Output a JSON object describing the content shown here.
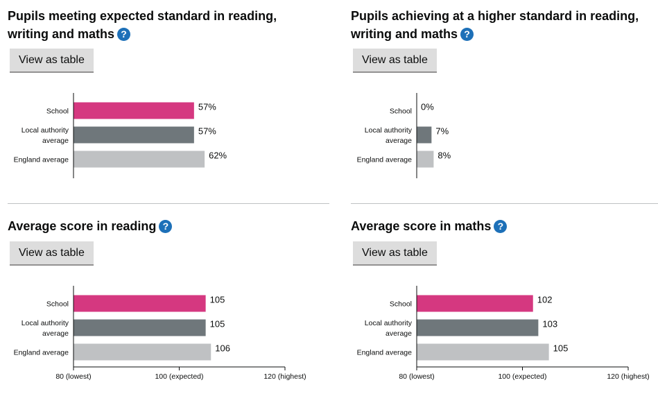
{
  "help_glyph": "?",
  "panels": [
    {
      "title": "Pupils meeting expected standard in reading, writing and maths",
      "button": "View as table"
    },
    {
      "title": "Pupils achieving at a higher standard in reading, writing and maths",
      "button": "View as table"
    },
    {
      "title": "Average score in reading",
      "button": "View as table"
    },
    {
      "title": "Average score in maths",
      "button": "View as table"
    }
  ],
  "chart_data": [
    {
      "type": "bar",
      "orientation": "horizontal",
      "categories": [
        "School",
        "Local authority average",
        "England average"
      ],
      "values": [
        57,
        57,
        62
      ],
      "labels": [
        "57%",
        "57%",
        "62%"
      ],
      "colors": [
        "#d53880",
        "#6f777b",
        "#bfc1c3"
      ],
      "xlim": [
        0,
        100
      ],
      "ticks": []
    },
    {
      "type": "bar",
      "orientation": "horizontal",
      "categories": [
        "School",
        "Local authority average",
        "England average"
      ],
      "values": [
        0,
        7,
        8
      ],
      "labels": [
        "0%",
        "7%",
        "8%"
      ],
      "colors": [
        "#d53880",
        "#6f777b",
        "#bfc1c3"
      ],
      "xlim": [
        0,
        100
      ],
      "ticks": []
    },
    {
      "type": "bar",
      "orientation": "horizontal",
      "categories": [
        "School",
        "Local authority average",
        "England average"
      ],
      "values": [
        105,
        105,
        106
      ],
      "labels": [
        "105",
        "105",
        "106"
      ],
      "colors": [
        "#d53880",
        "#6f777b",
        "#bfc1c3"
      ],
      "xlim": [
        80,
        120
      ],
      "ticks": [
        {
          "value": 80,
          "label": "80 (lowest)"
        },
        {
          "value": 100,
          "label": "100 (expected)"
        },
        {
          "value": 120,
          "label": "120 (highest)"
        }
      ]
    },
    {
      "type": "bar",
      "orientation": "horizontal",
      "categories": [
        "School",
        "Local authority average",
        "England average"
      ],
      "values": [
        102,
        103,
        105
      ],
      "labels": [
        "102",
        "103",
        "105"
      ],
      "colors": [
        "#d53880",
        "#6f777b",
        "#bfc1c3"
      ],
      "xlim": [
        80,
        120
      ],
      "ticks": [
        {
          "value": 80,
          "label": "80 (lowest)"
        },
        {
          "value": 100,
          "label": "100 (expected)"
        },
        {
          "value": 120,
          "label": "120 (highest)"
        }
      ]
    }
  ]
}
